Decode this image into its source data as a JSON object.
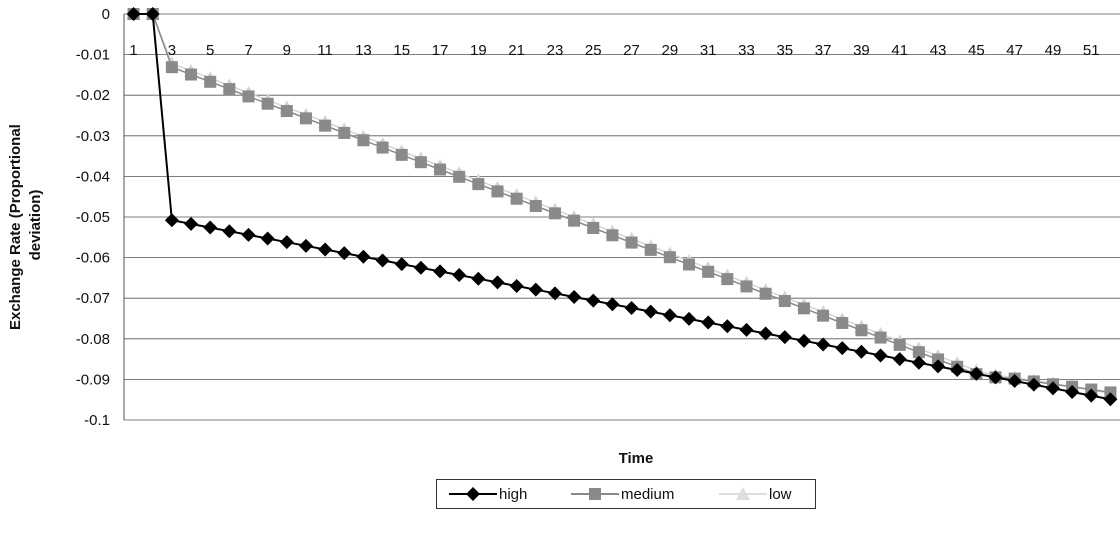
{
  "chart_data": {
    "type": "line",
    "title": "",
    "xlabel": "Time",
    "ylabel": "Exchange Rate (Proportional deviation)",
    "ylabel_lines": [
      "Exchange Rate (Proportional",
      "deviation)"
    ],
    "ylim": [
      -0.1,
      0
    ],
    "y_ticks": [
      "0",
      "-0.01",
      "-0.02",
      "-0.03",
      "-0.04",
      "-0.05",
      "-0.06",
      "-0.07",
      "-0.08",
      "-0.09",
      "-0.1"
    ],
    "y_tick_values": [
      0,
      -0.01,
      -0.02,
      -0.03,
      -0.04,
      -0.05,
      -0.06,
      -0.07,
      -0.08,
      -0.09,
      -0.1
    ],
    "x_tick_labels": [
      "1",
      "3",
      "5",
      "7",
      "9",
      "11",
      "13",
      "15",
      "17",
      "19",
      "21",
      "23",
      "25",
      "27",
      "29",
      "31",
      "33",
      "35",
      "37",
      "39",
      "41",
      "43",
      "45",
      "47",
      "49",
      "51"
    ],
    "x": [
      1,
      2,
      3,
      4,
      5,
      6,
      7,
      8,
      9,
      10,
      11,
      12,
      13,
      14,
      15,
      16,
      17,
      18,
      19,
      20,
      21,
      22,
      23,
      24,
      25,
      26,
      27,
      28,
      29,
      30,
      31,
      32,
      33,
      34,
      35,
      36,
      37,
      38,
      39,
      40,
      41,
      42,
      43,
      44,
      45,
      46,
      47,
      48,
      49,
      50,
      51,
      52
    ],
    "grid": true,
    "legend_position": "bottom",
    "series": [
      {
        "name": "high",
        "color": "#000000",
        "marker": "diamond",
        "values": [
          0,
          0,
          -0.0508,
          -0.0517,
          -0.0526,
          -0.0535,
          -0.0544,
          -0.0553,
          -0.0562,
          -0.0571,
          -0.058,
          -0.0589,
          -0.0598,
          -0.0607,
          -0.0616,
          -0.0625,
          -0.0634,
          -0.0643,
          -0.0652,
          -0.0661,
          -0.067,
          -0.0679,
          -0.0688,
          -0.0697,
          -0.0706,
          -0.0715,
          -0.0724,
          -0.0733,
          -0.0742,
          -0.0751,
          -0.076,
          -0.0769,
          -0.0778,
          -0.0787,
          -0.0796,
          -0.0805,
          -0.0814,
          -0.0823,
          -0.0832,
          -0.0841,
          -0.085,
          -0.0859,
          -0.0868,
          -0.0877,
          -0.0886,
          -0.0895,
          -0.0904,
          -0.0913,
          -0.0922,
          -0.0931,
          -0.094,
          -0.0949
        ]
      },
      {
        "name": "medium",
        "color": "#8a8a8a",
        "marker": "square",
        "values": [
          0,
          0,
          -0.0131,
          -0.0149,
          -0.0167,
          -0.0185,
          -0.0203,
          -0.0221,
          -0.0239,
          -0.0257,
          -0.0275,
          -0.0293,
          -0.0311,
          -0.0329,
          -0.0347,
          -0.0365,
          -0.0383,
          -0.0401,
          -0.0419,
          -0.0437,
          -0.0455,
          -0.0473,
          -0.0491,
          -0.0509,
          -0.0527,
          -0.0545,
          -0.0563,
          -0.0581,
          -0.0599,
          -0.0617,
          -0.0635,
          -0.0653,
          -0.0671,
          -0.0689,
          -0.0707,
          -0.0725,
          -0.0743,
          -0.0761,
          -0.0779,
          -0.0797,
          -0.0815,
          -0.0833,
          -0.0851,
          -0.0869,
          -0.0887,
          -0.0895,
          -0.0898,
          -0.0905,
          -0.0912,
          -0.0918,
          -0.0925,
          -0.0932
        ]
      },
      {
        "name": "low",
        "color": "#d4d4d4",
        "marker": "triangle",
        "values": [
          0,
          0,
          -0.0122,
          -0.014,
          -0.0158,
          -0.0176,
          -0.0194,
          -0.0212,
          -0.023,
          -0.0248,
          -0.0266,
          -0.0284,
          -0.0302,
          -0.032,
          -0.0338,
          -0.0356,
          -0.0374,
          -0.0392,
          -0.041,
          -0.0428,
          -0.0446,
          -0.0464,
          -0.0482,
          -0.05,
          -0.0518,
          -0.0536,
          -0.0554,
          -0.0572,
          -0.059,
          -0.0608,
          -0.0626,
          -0.0644,
          -0.0662,
          -0.068,
          -0.0698,
          -0.0716,
          -0.0734,
          -0.0752,
          -0.077,
          -0.0788,
          -0.0806,
          -0.0824,
          -0.0842,
          -0.086,
          -0.0878,
          -0.089,
          -0.0896,
          -0.0903,
          -0.091,
          -0.0918,
          -0.0926,
          -0.0934
        ]
      }
    ]
  }
}
